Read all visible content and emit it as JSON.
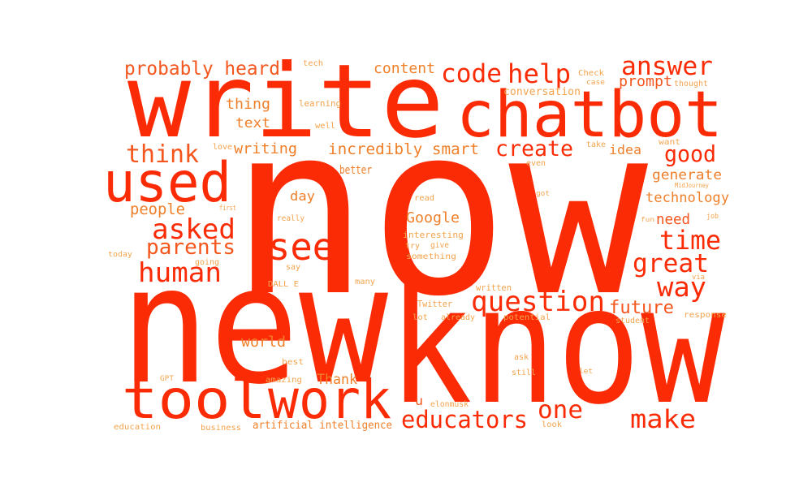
{
  "palette": {
    "background": "#ffffff",
    "strong": "#fa2b05",
    "medium": "#f4561d",
    "light": "#f07f2a",
    "faint": "#f3a34c"
  },
  "words": [
    {
      "text": "now",
      "tone": "strong"
    },
    {
      "text": "new",
      "tone": "strong"
    },
    {
      "text": "know",
      "tone": "strong"
    },
    {
      "text": "write",
      "tone": "strong"
    },
    {
      "text": "chatbot",
      "tone": "strong"
    },
    {
      "text": "used",
      "tone": "strong"
    },
    {
      "text": "tool",
      "tone": "strong"
    },
    {
      "text": "work",
      "tone": "strong"
    },
    {
      "text": "code",
      "tone": "strong"
    },
    {
      "text": "help",
      "tone": "strong"
    },
    {
      "text": "answer",
      "tone": "strong"
    },
    {
      "text": "create",
      "tone": "strong"
    },
    {
      "text": "good",
      "tone": "strong"
    },
    {
      "text": "asked",
      "tone": "strong"
    },
    {
      "text": "see",
      "tone": "strong"
    },
    {
      "text": "time",
      "tone": "strong"
    },
    {
      "text": "great",
      "tone": "strong"
    },
    {
      "text": "human",
      "tone": "strong"
    },
    {
      "text": "way",
      "tone": "strong"
    },
    {
      "text": "question",
      "tone": "strong"
    },
    {
      "text": "educators",
      "tone": "strong"
    },
    {
      "text": "make",
      "tone": "strong"
    },
    {
      "text": "one",
      "tone": "strong"
    },
    {
      "text": "probably heard",
      "tone": "medium"
    },
    {
      "text": "think",
      "tone": "medium"
    },
    {
      "text": "parents",
      "tone": "medium"
    },
    {
      "text": "future",
      "tone": "medium"
    },
    {
      "text": "prompt",
      "tone": "medium"
    },
    {
      "text": "u",
      "tone": "medium"
    },
    {
      "text": "need",
      "tone": "medium"
    },
    {
      "text": "content",
      "tone": "light"
    },
    {
      "text": "thing",
      "tone": "light"
    },
    {
      "text": "text",
      "tone": "light"
    },
    {
      "text": "writing",
      "tone": "light"
    },
    {
      "text": "incredibly smart",
      "tone": "light"
    },
    {
      "text": "idea",
      "tone": "light"
    },
    {
      "text": "generate",
      "tone": "light"
    },
    {
      "text": "technology",
      "tone": "light"
    },
    {
      "text": "people",
      "tone": "light"
    },
    {
      "text": "Google",
      "tone": "light"
    },
    {
      "text": "world",
      "tone": "light"
    },
    {
      "text": "Thank",
      "tone": "light"
    },
    {
      "text": "day",
      "tone": "light"
    },
    {
      "text": "better",
      "tone": "light"
    },
    {
      "text": "artificial intelligence",
      "tone": "light"
    },
    {
      "text": "tech",
      "tone": "faint"
    },
    {
      "text": "Check",
      "tone": "faint"
    },
    {
      "text": "case",
      "tone": "faint"
    },
    {
      "text": "thought",
      "tone": "faint"
    },
    {
      "text": "conversation",
      "tone": "faint"
    },
    {
      "text": "learning",
      "tone": "faint"
    },
    {
      "text": "well",
      "tone": "faint"
    },
    {
      "text": "love",
      "tone": "faint"
    },
    {
      "text": "take",
      "tone": "faint"
    },
    {
      "text": "want",
      "tone": "faint"
    },
    {
      "text": "even",
      "tone": "faint"
    },
    {
      "text": "MidJourney",
      "tone": "faint"
    },
    {
      "text": "read",
      "tone": "faint"
    },
    {
      "text": "got",
      "tone": "faint"
    },
    {
      "text": "first",
      "tone": "faint"
    },
    {
      "text": "job",
      "tone": "faint"
    },
    {
      "text": "fun",
      "tone": "faint"
    },
    {
      "text": "really",
      "tone": "faint"
    },
    {
      "text": "interesting",
      "tone": "faint"
    },
    {
      "text": "try",
      "tone": "faint"
    },
    {
      "text": "give",
      "tone": "faint"
    },
    {
      "text": "something",
      "tone": "faint"
    },
    {
      "text": "today",
      "tone": "faint"
    },
    {
      "text": "going",
      "tone": "faint"
    },
    {
      "text": "say",
      "tone": "faint"
    },
    {
      "text": "via",
      "tone": "faint"
    },
    {
      "text": "DALL E",
      "tone": "faint"
    },
    {
      "text": "many",
      "tone": "faint"
    },
    {
      "text": "written",
      "tone": "faint"
    },
    {
      "text": "Twitter",
      "tone": "faint"
    },
    {
      "text": "lot",
      "tone": "faint"
    },
    {
      "text": "already",
      "tone": "faint"
    },
    {
      "text": "potential",
      "tone": "faint"
    },
    {
      "text": "response",
      "tone": "faint"
    },
    {
      "text": "student",
      "tone": "faint"
    },
    {
      "text": "best",
      "tone": "faint"
    },
    {
      "text": "ask",
      "tone": "faint"
    },
    {
      "text": "still",
      "tone": "faint"
    },
    {
      "text": "let",
      "tone": "faint"
    },
    {
      "text": "GPT",
      "tone": "faint"
    },
    {
      "text": "amazing",
      "tone": "faint"
    },
    {
      "text": "elonmusk",
      "tone": "faint"
    },
    {
      "text": "look",
      "tone": "faint"
    },
    {
      "text": "education",
      "tone": "faint"
    },
    {
      "text": "business",
      "tone": "faint"
    }
  ]
}
